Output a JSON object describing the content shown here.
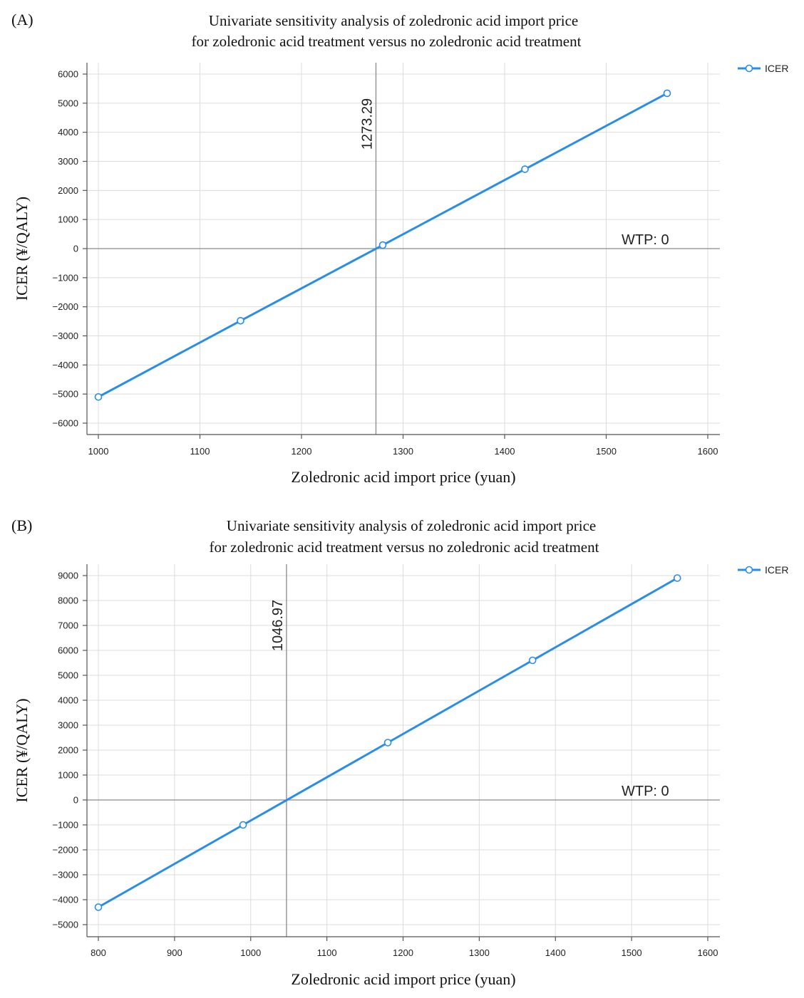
{
  "chart_data": [
    {
      "type": "line",
      "panel_label": "(A)",
      "title_line1": "Univariate sensitivity analysis of zoledronic acid import price",
      "title_line2": "for zoledronic acid treatment versus no zoledronic acid treatment",
      "xlabel": "Zoledronic acid import price (yuan)",
      "ylabel": "ICER (¥/QALY)",
      "xlim": [
        1000,
        1600
      ],
      "ylim": [
        -6000,
        6000
      ],
      "xticks": [
        1000,
        1100,
        1200,
        1300,
        1400,
        1500,
        1600
      ],
      "yticks": [
        6000,
        5000,
        4000,
        3000,
        2000,
        1000,
        0,
        -1000,
        -2000,
        -3000,
        -4000,
        -5000,
        -6000
      ],
      "series": [
        {
          "name": "ICER",
          "color": "#2a8de8",
          "x": [
            1000,
            1140,
            1280,
            1420,
            1560
          ],
          "y": [
            -5100,
            -2480,
            120,
            2730,
            5340
          ]
        }
      ],
      "breakeven": {
        "x": 1273.29,
        "label": "1273.29"
      },
      "wtp_label": "WTP: 0",
      "grid": true,
      "legend_position": "top-right"
    },
    {
      "type": "line",
      "panel_label": "(B)",
      "title_line1": "Univariate sensitivity analysis of zoledronic acid import price",
      "title_line2": "for zoledronic acid treatment versus no zoledronic acid treatment",
      "xlabel": "Zoledronic acid import price (yuan)",
      "ylabel": "ICER (¥/QALY)",
      "xlim": [
        800,
        1600
      ],
      "ylim": [
        -5000,
        9000
      ],
      "xticks": [
        800,
        900,
        1000,
        1100,
        1200,
        1300,
        1400,
        1500,
        1600
      ],
      "yticks": [
        9000,
        8000,
        7000,
        6000,
        5000,
        4000,
        3000,
        2000,
        1000,
        0,
        -1000,
        -2000,
        -3000,
        -4000,
        -5000
      ],
      "series": [
        {
          "name": "ICER",
          "color": "#2a8de8",
          "x": [
            800,
            990,
            1180,
            1370,
            1560
          ],
          "y": [
            -4300,
            -1000,
            2300,
            5600,
            8900
          ]
        }
      ],
      "breakeven": {
        "x": 1046.97,
        "label": "1046.97"
      },
      "wtp_label": "WTP: 0",
      "grid": true,
      "legend_position": "top-right"
    }
  ]
}
